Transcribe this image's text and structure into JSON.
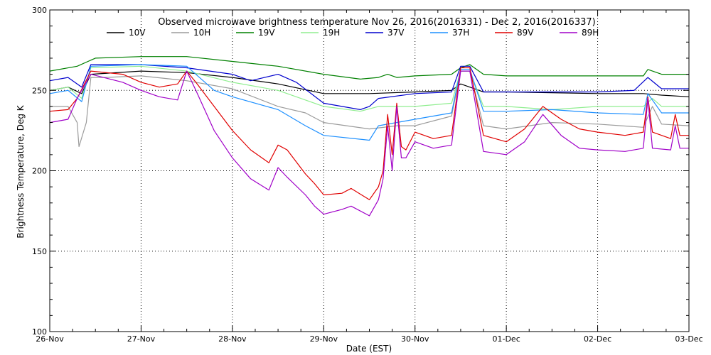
{
  "chart_data": {
    "type": "line",
    "title": "Observed microwave brightness temperature Nov 26, 2016(2016331) - Dec  2, 2016(2016337)",
    "xlabel": "Date (EST)",
    "ylabel": "Brightness Temperature, Deg K",
    "ylim": [
      100,
      300
    ],
    "xlim": [
      0,
      7
    ],
    "grid": true,
    "legend_position": "top",
    "x_ticks": [
      {
        "x": 0,
        "label": "26-Nov"
      },
      {
        "x": 1,
        "label": "27-Nov"
      },
      {
        "x": 2,
        "label": "28-Nov"
      },
      {
        "x": 3,
        "label": "29-Nov"
      },
      {
        "x": 4,
        "label": "30-Nov"
      },
      {
        "x": 5,
        "label": "01-Dec"
      },
      {
        "x": 6,
        "label": "02-Dec"
      },
      {
        "x": 7,
        "label": "03-Dec"
      }
    ],
    "y_ticks": [
      100,
      150,
      200,
      250,
      300
    ],
    "series": [
      {
        "name": "10V",
        "color": "#000000",
        "points": [
          [
            0,
            250
          ],
          [
            0.2,
            252
          ],
          [
            0.35,
            248
          ],
          [
            0.45,
            260
          ],
          [
            1,
            262
          ],
          [
            1.5,
            261
          ],
          [
            2,
            258
          ],
          [
            2.5,
            254
          ],
          [
            3,
            248
          ],
          [
            3.5,
            248
          ],
          [
            4,
            249
          ],
          [
            4.4,
            250
          ],
          [
            4.5,
            254
          ],
          [
            4.6,
            252
          ],
          [
            4.75,
            249
          ],
          [
            5,
            249
          ],
          [
            6,
            248
          ],
          [
            6.5,
            248
          ],
          [
            6.7,
            247
          ],
          [
            7,
            246
          ]
        ]
      },
      {
        "name": "10H",
        "color": "#9b9b9b",
        "points": [
          [
            0,
            240
          ],
          [
            0.2,
            240
          ],
          [
            0.3,
            230
          ],
          [
            0.32,
            215
          ],
          [
            0.4,
            230
          ],
          [
            0.45,
            258
          ],
          [
            0.6,
            258
          ],
          [
            1,
            259
          ],
          [
            1.5,
            256
          ],
          [
            2,
            251
          ],
          [
            2.5,
            240
          ],
          [
            2.8,
            236
          ],
          [
            3,
            230
          ],
          [
            3.5,
            226
          ],
          [
            3.8,
            228
          ],
          [
            4,
            228
          ],
          [
            4.4,
            234
          ],
          [
            4.5,
            262
          ],
          [
            4.6,
            262
          ],
          [
            4.75,
            228
          ],
          [
            5,
            226
          ],
          [
            5.5,
            230
          ],
          [
            6,
            229
          ],
          [
            6.5,
            227
          ],
          [
            6.6,
            240
          ],
          [
            6.7,
            229
          ],
          [
            7,
            228
          ]
        ]
      },
      {
        "name": "19V",
        "color": "#008000",
        "points": [
          [
            0,
            262
          ],
          [
            0.3,
            265
          ],
          [
            0.5,
            270
          ],
          [
            1,
            271
          ],
          [
            1.5,
            271
          ],
          [
            2,
            268
          ],
          [
            2.5,
            265
          ],
          [
            3,
            260
          ],
          [
            3.4,
            257
          ],
          [
            3.6,
            258
          ],
          [
            3.7,
            260
          ],
          [
            3.8,
            258
          ],
          [
            4,
            259
          ],
          [
            4.4,
            260
          ],
          [
            4.5,
            264
          ],
          [
            4.6,
            266
          ],
          [
            4.75,
            260
          ],
          [
            5,
            259
          ],
          [
            6,
            259
          ],
          [
            6.5,
            259
          ],
          [
            6.55,
            263
          ],
          [
            6.7,
            260
          ],
          [
            7,
            260
          ]
        ]
      },
      {
        "name": "19H",
        "color": "#90ee90",
        "points": [
          [
            0,
            250
          ],
          [
            0.2,
            252
          ],
          [
            0.35,
            245
          ],
          [
            0.45,
            264
          ],
          [
            1,
            265
          ],
          [
            1.5,
            262
          ],
          [
            2,
            255
          ],
          [
            2.5,
            250
          ],
          [
            3,
            240
          ],
          [
            3.4,
            237
          ],
          [
            3.6,
            240
          ],
          [
            4,
            240
          ],
          [
            4.4,
            242
          ],
          [
            4.5,
            262
          ],
          [
            4.6,
            262
          ],
          [
            4.75,
            240
          ],
          [
            5,
            240
          ],
          [
            5.5,
            238
          ],
          [
            6,
            240
          ],
          [
            6.5,
            240
          ],
          [
            6.6,
            245
          ],
          [
            6.7,
            240
          ],
          [
            7,
            240
          ]
        ]
      },
      {
        "name": "37V",
        "color": "#0000cd",
        "points": [
          [
            0,
            256
          ],
          [
            0.2,
            258
          ],
          [
            0.35,
            252
          ],
          [
            0.45,
            266
          ],
          [
            1,
            266
          ],
          [
            1.5,
            264
          ],
          [
            2,
            260
          ],
          [
            2.2,
            256
          ],
          [
            2.5,
            260
          ],
          [
            2.7,
            255
          ],
          [
            3,
            242
          ],
          [
            3.4,
            238
          ],
          [
            3.5,
            240
          ],
          [
            3.6,
            245
          ],
          [
            4,
            248
          ],
          [
            4.4,
            249
          ],
          [
            4.5,
            265
          ],
          [
            4.6,
            265
          ],
          [
            4.75,
            249
          ],
          [
            5,
            249
          ],
          [
            6,
            249
          ],
          [
            6.4,
            250
          ],
          [
            6.55,
            258
          ],
          [
            6.7,
            251
          ],
          [
            7,
            251
          ]
        ]
      },
      {
        "name": "37H",
        "color": "#1e90ff",
        "points": [
          [
            0,
            248
          ],
          [
            0.2,
            250
          ],
          [
            0.35,
            243
          ],
          [
            0.45,
            265
          ],
          [
            1,
            266
          ],
          [
            1.5,
            265
          ],
          [
            1.8,
            250
          ],
          [
            2,
            246
          ],
          [
            2.5,
            238
          ],
          [
            2.8,
            228
          ],
          [
            3,
            222
          ],
          [
            3.5,
            219
          ],
          [
            3.6,
            228
          ],
          [
            4,
            232
          ],
          [
            4.4,
            236
          ],
          [
            4.5,
            263
          ],
          [
            4.6,
            263
          ],
          [
            4.75,
            237
          ],
          [
            5,
            237
          ],
          [
            5.5,
            238
          ],
          [
            6,
            236
          ],
          [
            6.5,
            235
          ],
          [
            6.55,
            248
          ],
          [
            6.7,
            236
          ],
          [
            7,
            236
          ]
        ]
      },
      {
        "name": "89V",
        "color": "#e00000",
        "points": [
          [
            0,
            237
          ],
          [
            0.2,
            238
          ],
          [
            0.3,
            245
          ],
          [
            0.45,
            262
          ],
          [
            0.8,
            260
          ],
          [
            1,
            255
          ],
          [
            1.2,
            252
          ],
          [
            1.4,
            254
          ],
          [
            1.5,
            262
          ],
          [
            1.6,
            255
          ],
          [
            1.8,
            240
          ],
          [
            2,
            225
          ],
          [
            2.2,
            213
          ],
          [
            2.4,
            205
          ],
          [
            2.5,
            216
          ],
          [
            2.6,
            213
          ],
          [
            2.8,
            198
          ],
          [
            2.9,
            192
          ],
          [
            3,
            185
          ],
          [
            3.2,
            186
          ],
          [
            3.3,
            189
          ],
          [
            3.5,
            182
          ],
          [
            3.6,
            190
          ],
          [
            3.65,
            200
          ],
          [
            3.7,
            235
          ],
          [
            3.75,
            210
          ],
          [
            3.8,
            242
          ],
          [
            3.85,
            215
          ],
          [
            3.9,
            213
          ],
          [
            4,
            224
          ],
          [
            4.2,
            220
          ],
          [
            4.4,
            222
          ],
          [
            4.5,
            264
          ],
          [
            4.6,
            264
          ],
          [
            4.75,
            222
          ],
          [
            5,
            218
          ],
          [
            5.2,
            226
          ],
          [
            5.4,
            240
          ],
          [
            5.6,
            232
          ],
          [
            5.8,
            226
          ],
          [
            6,
            224
          ],
          [
            6.3,
            222
          ],
          [
            6.5,
            224
          ],
          [
            6.55,
            246
          ],
          [
            6.6,
            224
          ],
          [
            6.8,
            220
          ],
          [
            6.85,
            235
          ],
          [
            6.9,
            222
          ],
          [
            7,
            222
          ]
        ]
      },
      {
        "name": "89H",
        "color": "#a000c8",
        "points": [
          [
            0,
            230
          ],
          [
            0.2,
            232
          ],
          [
            0.3,
            245
          ],
          [
            0.45,
            260
          ],
          [
            0.8,
            255
          ],
          [
            1,
            250
          ],
          [
            1.2,
            246
          ],
          [
            1.4,
            244
          ],
          [
            1.5,
            262
          ],
          [
            1.6,
            250
          ],
          [
            1.8,
            225
          ],
          [
            2,
            208
          ],
          [
            2.2,
            195
          ],
          [
            2.4,
            188
          ],
          [
            2.5,
            202
          ],
          [
            2.6,
            196
          ],
          [
            2.8,
            185
          ],
          [
            2.9,
            178
          ],
          [
            3,
            173
          ],
          [
            3.2,
            176
          ],
          [
            3.3,
            178
          ],
          [
            3.5,
            172
          ],
          [
            3.6,
            182
          ],
          [
            3.65,
            195
          ],
          [
            3.7,
            228
          ],
          [
            3.75,
            200
          ],
          [
            3.8,
            240
          ],
          [
            3.85,
            208
          ],
          [
            3.9,
            208
          ],
          [
            4,
            218
          ],
          [
            4.2,
            214
          ],
          [
            4.4,
            216
          ],
          [
            4.5,
            262
          ],
          [
            4.6,
            262
          ],
          [
            4.75,
            212
          ],
          [
            5,
            210
          ],
          [
            5.2,
            218
          ],
          [
            5.4,
            235
          ],
          [
            5.6,
            222
          ],
          [
            5.8,
            214
          ],
          [
            6,
            213
          ],
          [
            6.3,
            212
          ],
          [
            6.5,
            214
          ],
          [
            6.55,
            245
          ],
          [
            6.6,
            214
          ],
          [
            6.8,
            213
          ],
          [
            6.85,
            228
          ],
          [
            6.9,
            214
          ],
          [
            7,
            214
          ]
        ]
      }
    ]
  }
}
